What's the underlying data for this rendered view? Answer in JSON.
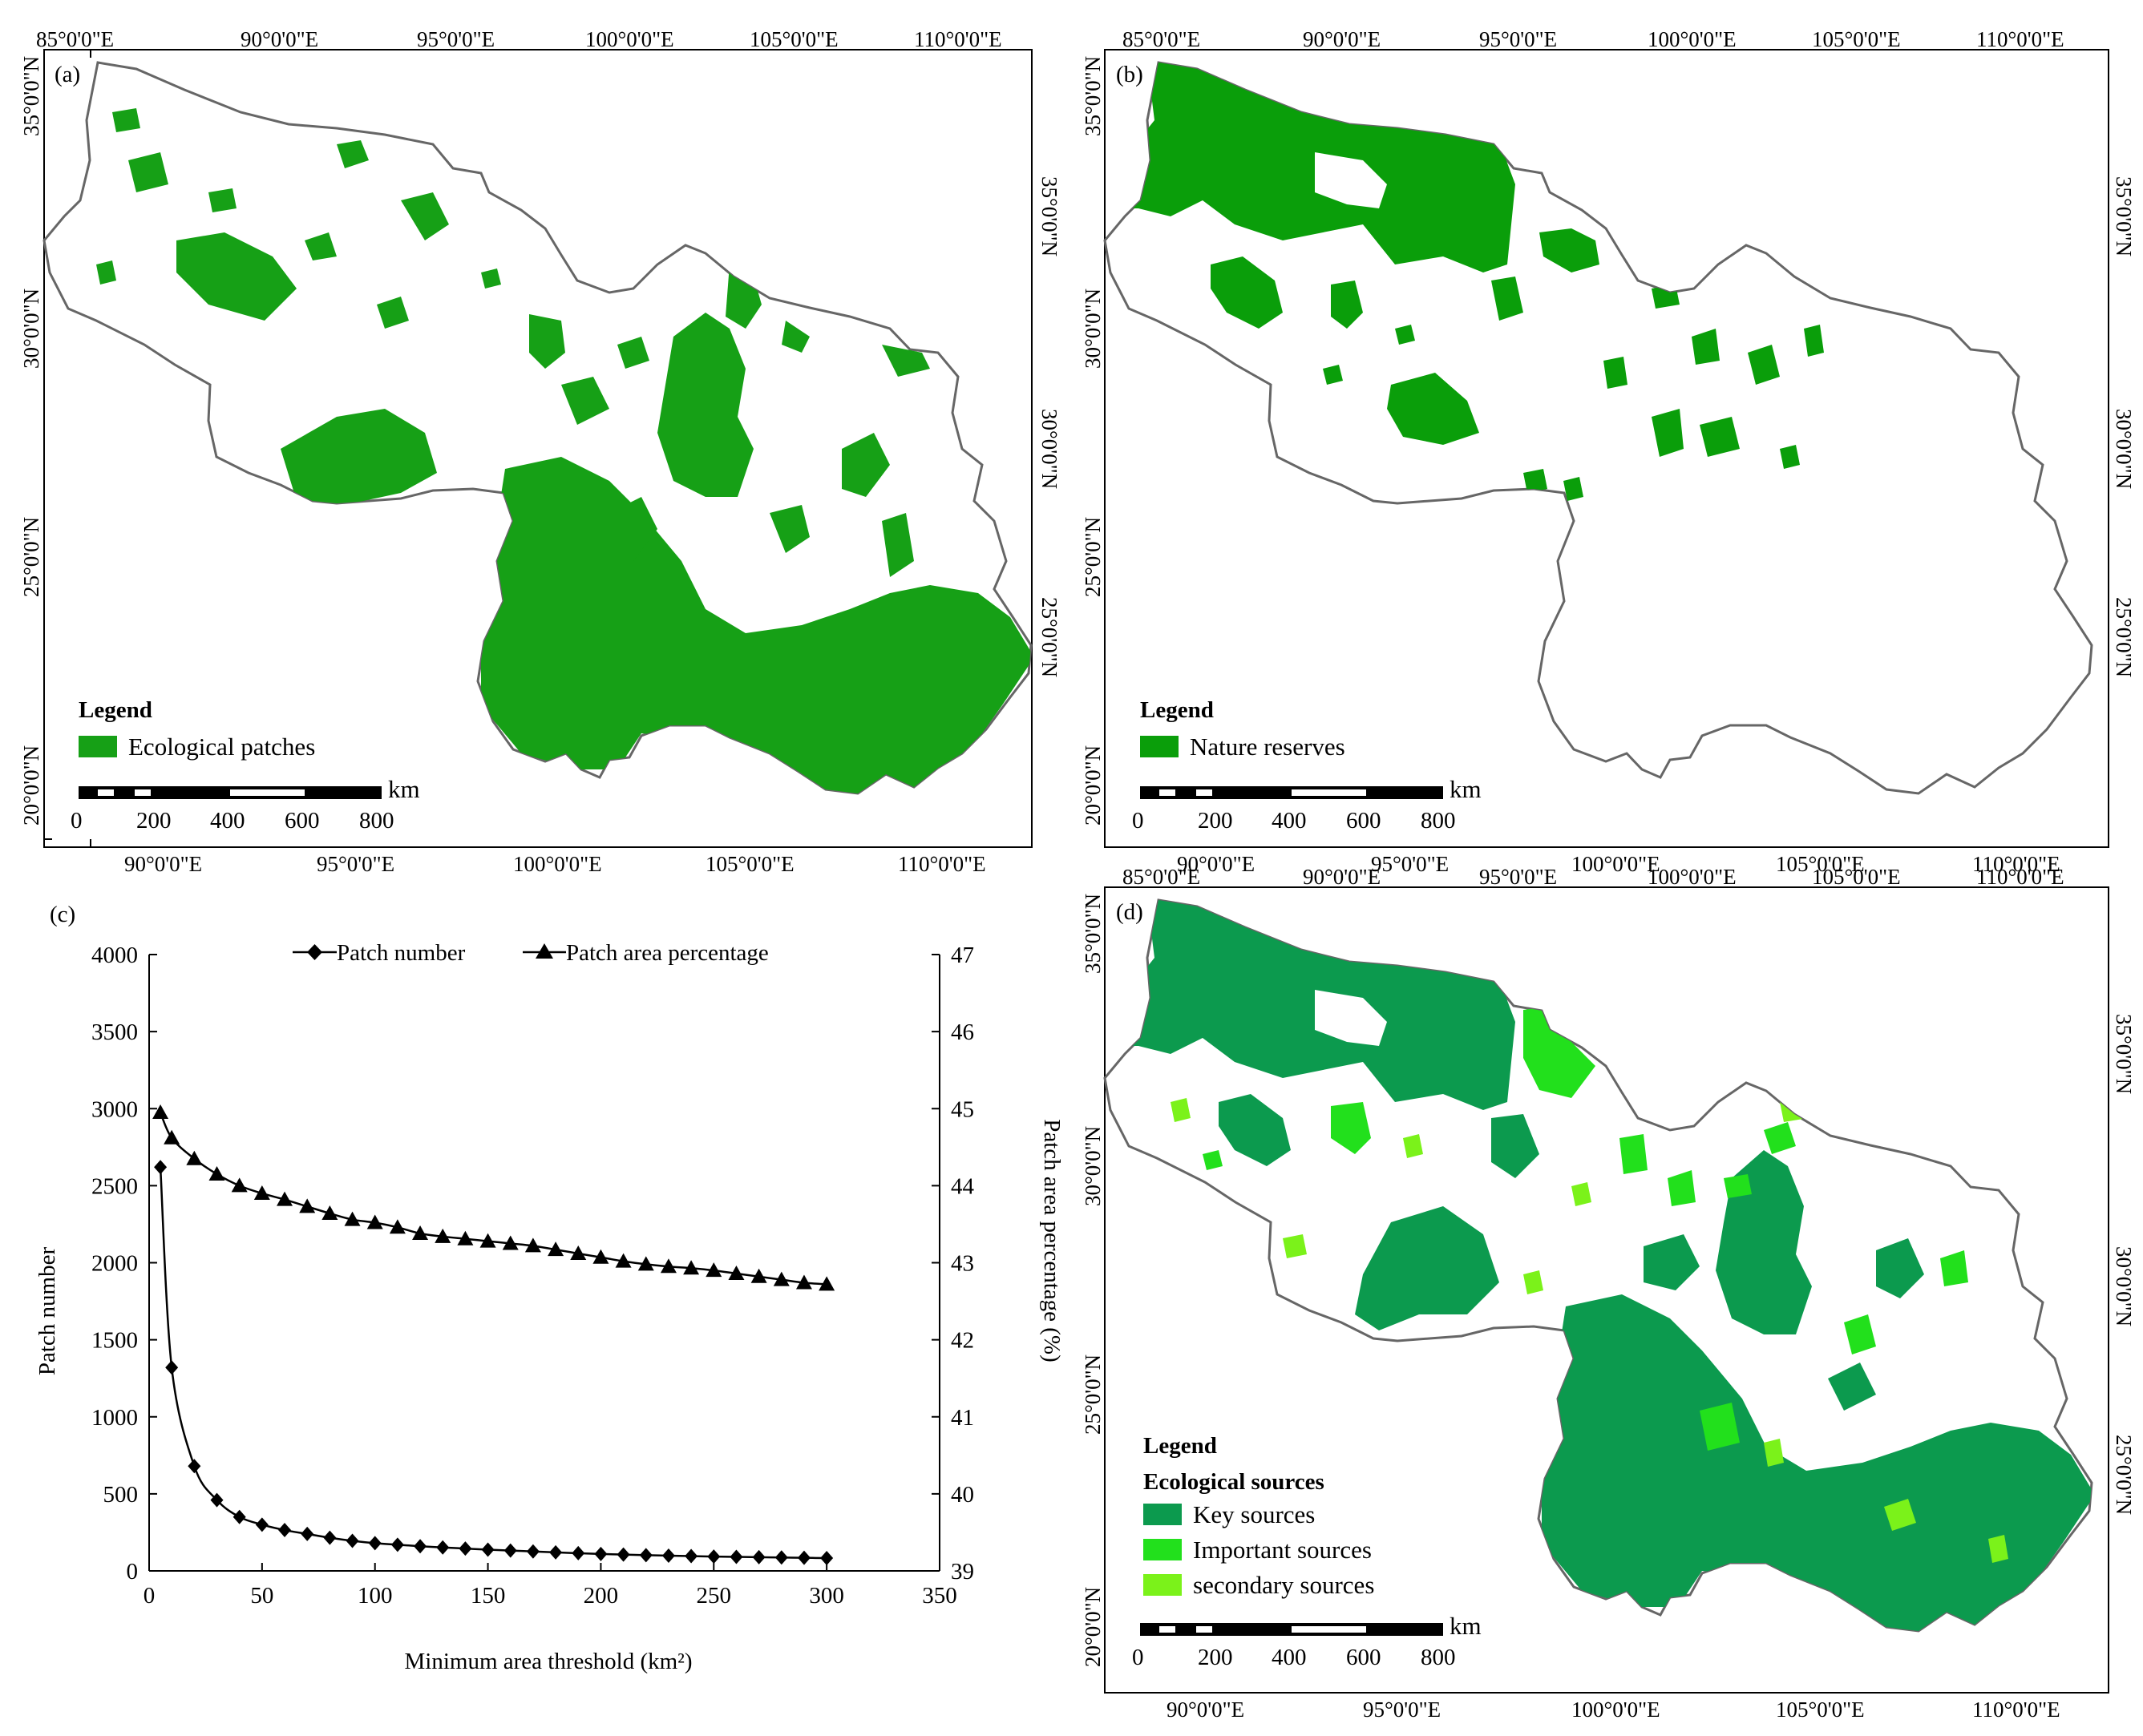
{
  "panels": {
    "a": {
      "label": "(a)",
      "legend_title": "Legend",
      "legend_items": [
        {
          "label": "Ecological patches",
          "color": "#16a016"
        }
      ],
      "scale": {
        "unit": "km",
        "ticks": [
          "0",
          "200",
          "400",
          "600",
          "800"
        ]
      },
      "top_lon": [
        "85°0'0\"E",
        "90°0'0\"E",
        "95°0'0\"E",
        "100°0'0\"E",
        "105°0'0\"E",
        "110°0'0\"E"
      ],
      "bottom_lon": [
        "90°0'0\"E",
        "95°0'0\"E",
        "100°0'0\"E",
        "105°0'0\"E",
        "110°0'0\"E"
      ],
      "left_lat": [
        "35°0'0\"N",
        "30°0'0\"N",
        "25°0'0\"N",
        "20°0'0\"N"
      ],
      "right_lat": [
        "35°0'0\"N",
        "30°0'0\"N",
        "25°0'0\"N"
      ]
    },
    "b": {
      "label": "(b)",
      "legend_title": "Legend",
      "legend_items": [
        {
          "label": "Nature reserves",
          "color": "#0a9e0a"
        }
      ],
      "scale": {
        "unit": "km",
        "ticks": [
          "0",
          "200",
          "400",
          "600",
          "800"
        ]
      },
      "top_lon": [
        "85°0'0\"E",
        "90°0'0\"E",
        "95°0'0\"E",
        "100°0'0\"E",
        "105°0'0\"E",
        "110°0'0\"E"
      ],
      "bottom_lon": [
        "90°0'0\"E",
        "95°0'0\"E",
        "100°0'0\"E",
        "105°0'0\"E",
        "110°0'0\"E"
      ],
      "left_lat": [
        "35°0'0\"N",
        "30°0'0\"N",
        "25°0'0\"N",
        "20°0'0\"N"
      ],
      "right_lat": [
        "35°0'0\"N",
        "30°0'0\"N",
        "25°0'0\"N"
      ]
    },
    "d": {
      "label": "(d)",
      "legend_title": "Legend",
      "legend_subtitle": "Ecological sources",
      "legend_items": [
        {
          "label": "Key sources",
          "color": "#0c9a4e"
        },
        {
          "label": "Important sources",
          "color": "#22e01c"
        },
        {
          "label": "secondary sources",
          "color": "#7bf21a"
        }
      ],
      "scale": {
        "unit": "km",
        "ticks": [
          "0",
          "200",
          "400",
          "600",
          "800"
        ]
      },
      "top_lon": [
        "85°0'0\"E",
        "90°0'0\"E",
        "95°0'0\"E",
        "100°0'0\"E",
        "105°0'0\"E",
        "110°0'0\"E"
      ],
      "bottom_lon": [
        "90°0'0\"E",
        "95°0'0\"E",
        "100°0'0\"E",
        "105°0'0\"E",
        "110°0'0\"E"
      ],
      "left_lat": [
        "35°0'0\"N",
        "30°0'0\"N",
        "25°0'0\"N",
        "20°0'0\"N"
      ],
      "right_lat": [
        "35°0'0\"N",
        "30°0'0\"N",
        "25°0'0\"N"
      ]
    }
  },
  "chart_data": {
    "panel_label": "(c)",
    "type": "line",
    "xlabel": "Minimum area threshold (km²)",
    "ylabel": "Patch number",
    "y2label": "Patch area percentage  (%)",
    "xlim": [
      0,
      350
    ],
    "xticks": [
      0,
      50,
      100,
      150,
      200,
      250,
      300,
      350
    ],
    "ylim": [
      0,
      4000
    ],
    "yticks": [
      0,
      500,
      1000,
      1500,
      2000,
      2500,
      3000,
      3500,
      4000
    ],
    "y2lim": [
      39,
      47
    ],
    "y2ticks": [
      39,
      40,
      41,
      42,
      43,
      44,
      45,
      46,
      47
    ],
    "legend_position": "top",
    "x": [
      5,
      10,
      20,
      30,
      40,
      50,
      60,
      70,
      80,
      90,
      100,
      110,
      120,
      130,
      140,
      150,
      160,
      170,
      180,
      190,
      200,
      210,
      220,
      230,
      240,
      250,
      260,
      270,
      280,
      290,
      300
    ],
    "series": [
      {
        "name": "Patch number",
        "marker": "diamond",
        "axis": "left",
        "values": [
          2620,
          1320,
          680,
          460,
          350,
          300,
          265,
          240,
          215,
          195,
          180,
          170,
          160,
          152,
          145,
          138,
          132,
          126,
          120,
          115,
          110,
          106,
          102,
          99,
          96,
          93,
          91,
          89,
          87,
          85,
          83
        ]
      },
      {
        "name": "Patch area percentage",
        "marker": "triangle",
        "axis": "right",
        "values": [
          44.95,
          44.62,
          44.35,
          44.15,
          44.0,
          43.9,
          43.82,
          43.73,
          43.64,
          43.56,
          43.52,
          43.46,
          43.38,
          43.34,
          43.31,
          43.28,
          43.25,
          43.22,
          43.17,
          43.12,
          43.07,
          43.02,
          42.98,
          42.95,
          42.93,
          42.9,
          42.86,
          42.82,
          42.78,
          42.74,
          42.72
        ]
      }
    ]
  }
}
